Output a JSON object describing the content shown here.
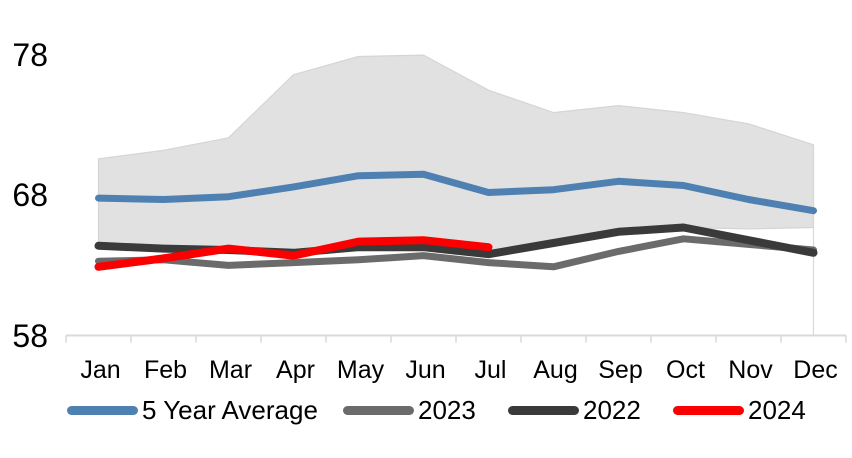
{
  "chart_data": {
    "type": "line",
    "categories": [
      "Jan",
      "Feb",
      "Mar",
      "Apr",
      "May",
      "Jun",
      "Jul",
      "Aug",
      "Sep",
      "Oct",
      "Nov",
      "Dec"
    ],
    "y_axis": {
      "ticks": [
        78,
        68,
        58
      ],
      "min": 58,
      "max": 78,
      "grid": false
    },
    "band": {
      "fill": "#e1e1e1",
      "border": "#d5d5d5",
      "upper": [
        70.6,
        71.2,
        72.1,
        76.6,
        77.9,
        78.0,
        75.5,
        73.9,
        74.4,
        73.9,
        73.1,
        71.6
      ],
      "lower": [
        64.6,
        64.4,
        64.3,
        64.0,
        64.9,
        65.0,
        63.9,
        64.6,
        65.4,
        65.7,
        65.6,
        65.7
      ]
    },
    "series": [
      {
        "name": "5 Year Average",
        "color": "#4e81b2",
        "width": 7,
        "values": [
          67.8,
          67.7,
          67.9,
          68.6,
          69.4,
          69.5,
          68.2,
          68.4,
          69.0,
          68.7,
          67.7,
          66.9
        ]
      },
      {
        "name": "2023",
        "color": "#6b6b6b",
        "width": 7,
        "values": [
          63.3,
          63.4,
          63.0,
          63.2,
          63.4,
          63.7,
          63.2,
          62.9,
          64.0,
          64.9,
          64.5,
          64.1
        ]
      },
      {
        "name": "2022",
        "color": "#3a3a3a",
        "width": 8,
        "values": [
          64.4,
          64.2,
          64.1,
          63.9,
          64.3,
          64.3,
          63.8,
          64.6,
          65.4,
          65.7,
          64.8,
          63.9
        ]
      },
      {
        "name": "2024",
        "color": "#fb0000",
        "width": 8,
        "values": [
          62.9,
          63.5,
          64.2,
          63.7,
          64.7,
          64.8,
          64.3
        ]
      }
    ],
    "legend": {
      "items": [
        "5 Year Average",
        "2023",
        "2022",
        "2024"
      ]
    },
    "axis_color": "#d9d9d9",
    "text_color": "#000000"
  }
}
